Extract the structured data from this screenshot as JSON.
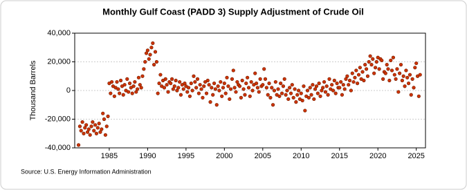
{
  "chart_data": {
    "type": "scatter",
    "title": "Monthly Gulf Coast (PADD 3) Supply Adjustment of Crude Oil",
    "y_label": "Thousand Barrels",
    "source": "Source: U.S. Energy Information Administration",
    "color": "#cc3300",
    "grid": true,
    "xlim": [
      1980.5,
      2026.2
    ],
    "xticks": [
      1985,
      1990,
      1995,
      2000,
      2005,
      2010,
      2015,
      2020,
      2025
    ],
    "ylim": [
      -40000,
      40000
    ],
    "yticks": [
      {
        "value": -40000,
        "label": "-40,000"
      },
      {
        "value": -20000,
        "label": "-20,000"
      },
      0,
      {
        "value": 20000,
        "label": "20,000"
      },
      {
        "value": 40000,
        "label": "40,000"
      }
    ],
    "x": [
      1981,
      1981.17,
      1981.33,
      1981.5,
      1981.67,
      1981.83,
      1982,
      1982.17,
      1982.33,
      1982.5,
      1982.67,
      1982.83,
      1983,
      1983.17,
      1983.33,
      1983.5,
      1983.67,
      1983.83,
      1984,
      1984.17,
      1984.33,
      1984.5,
      1984.67,
      1984.83,
      1985,
      1985.17,
      1985.33,
      1985.5,
      1985.67,
      1985.83,
      1986,
      1986.17,
      1986.33,
      1986.5,
      1986.67,
      1986.83,
      1987,
      1987.17,
      1987.33,
      1987.5,
      1987.67,
      1987.83,
      1988,
      1988.17,
      1988.33,
      1988.5,
      1988.67,
      1988.83,
      1989,
      1989.17,
      1989.33,
      1989.5,
      1989.67,
      1989.83,
      1990,
      1990.17,
      1990.33,
      1990.5,
      1990.67,
      1990.83,
      1991,
      1991.17,
      1991.33,
      1991.5,
      1991.67,
      1991.83,
      1992,
      1992.17,
      1992.33,
      1992.5,
      1992.67,
      1992.83,
      1993,
      1993.17,
      1993.33,
      1993.5,
      1993.67,
      1993.83,
      1994,
      1994.17,
      1994.33,
      1994.5,
      1994.67,
      1994.83,
      1995,
      1995.17,
      1995.33,
      1995.5,
      1995.67,
      1995.83,
      1996,
      1996.17,
      1996.33,
      1996.5,
      1996.67,
      1996.83,
      1997,
      1997.17,
      1997.33,
      1997.5,
      1997.67,
      1997.83,
      1998,
      1998.17,
      1998.33,
      1998.5,
      1998.67,
      1998.83,
      1999,
      1999.17,
      1999.33,
      1999.5,
      1999.67,
      1999.83,
      2000,
      2000.17,
      2000.33,
      2000.5,
      2000.67,
      2000.83,
      2001,
      2001.17,
      2001.33,
      2001.5,
      2001.67,
      2001.83,
      2002,
      2002.17,
      2002.33,
      2002.5,
      2002.67,
      2002.83,
      2003,
      2003.17,
      2003.33,
      2003.5,
      2003.67,
      2003.83,
      2004,
      2004.17,
      2004.33,
      2004.5,
      2004.67,
      2004.83,
      2005,
      2005.17,
      2005.33,
      2005.5,
      2005.67,
      2005.83,
      2006,
      2006.17,
      2006.33,
      2006.5,
      2006.67,
      2006.83,
      2007,
      2007.17,
      2007.33,
      2007.5,
      2007.67,
      2007.83,
      2008,
      2008.17,
      2008.33,
      2008.5,
      2008.67,
      2008.83,
      2009,
      2009.17,
      2009.33,
      2009.5,
      2009.67,
      2009.83,
      2010,
      2010.17,
      2010.33,
      2010.5,
      2010.67,
      2010.83,
      2011,
      2011.17,
      2011.33,
      2011.5,
      2011.67,
      2011.83,
      2012,
      2012.17,
      2012.33,
      2012.5,
      2012.67,
      2012.83,
      2013,
      2013.17,
      2013.33,
      2013.5,
      2013.67,
      2013.83,
      2014,
      2014.17,
      2014.33,
      2014.5,
      2014.67,
      2014.83,
      2015,
      2015.17,
      2015.33,
      2015.5,
      2015.67,
      2015.83,
      2016,
      2016.17,
      2016.33,
      2016.5,
      2016.67,
      2016.83,
      2017,
      2017.17,
      2017.33,
      2017.5,
      2017.67,
      2017.83,
      2018,
      2018.17,
      2018.33,
      2018.5,
      2018.67,
      2018.83,
      2019,
      2019.17,
      2019.33,
      2019.5,
      2019.67,
      2019.83,
      2020,
      2020.17,
      2020.33,
      2020.5,
      2020.67,
      2020.83,
      2021,
      2021.17,
      2021.33,
      2021.5,
      2021.67,
      2021.83,
      2022,
      2022.17,
      2022.33,
      2022.5,
      2022.67,
      2022.83,
      2023,
      2023.17,
      2023.33,
      2023.5,
      2023.67,
      2023.83,
      2024,
      2024.17,
      2024.33,
      2024.5,
      2024.67,
      2024.83,
      2025,
      2025.17,
      2025.33,
      2025.5
    ],
    "values": [
      -38000,
      -25000,
      -28000,
      -22000,
      -30000,
      -26000,
      -24000,
      -29000,
      -27000,
      -31000,
      -25000,
      -22000,
      -28000,
      -24000,
      -30000,
      -26000,
      -23000,
      -29000,
      -27000,
      -16000,
      -20000,
      -31000,
      -25000,
      -18000,
      5000,
      -2000,
      6000,
      3000,
      -4000,
      2000,
      6000,
      1000,
      -2000,
      7000,
      3000,
      -3000,
      4000,
      0,
      8000,
      -1000,
      5000,
      2000,
      -2000,
      3000,
      6000,
      -1000,
      1000,
      9000,
      4000,
      2000,
      10000,
      15000,
      20000,
      26000,
      28000,
      22000,
      25000,
      30000,
      33000,
      18000,
      27000,
      20000,
      -2000,
      5000,
      11000,
      3000,
      7000,
      2000,
      8000,
      4000,
      -1000,
      6000,
      5000,
      8000,
      1000,
      3000,
      7000,
      0,
      2000,
      6000,
      -3000,
      4000,
      1000,
      5000,
      3000,
      -1000,
      2000,
      -4000,
      5000,
      0,
      10000,
      6000,
      2000,
      8000,
      -2000,
      4000,
      1000,
      -5000,
      3000,
      6000,
      -2000,
      7000,
      4000,
      -8000,
      2000,
      -3000,
      5000,
      1000,
      -10000,
      3000,
      0,
      6000,
      -4000,
      2000,
      5000,
      -2000,
      9000,
      3000,
      -6000,
      1000,
      8000,
      14000,
      2000,
      -1000,
      6000,
      4000,
      3000,
      -5000,
      7000,
      1000,
      -3000,
      5000,
      9000,
      2000,
      -4000,
      6000,
      0,
      4000,
      12000,
      5000,
      2000,
      -1000,
      8000,
      3000,
      4000,
      15000,
      8000,
      2000,
      -3000,
      5000,
      -5000,
      2000,
      -10000,
      0,
      6000,
      -3000,
      1000,
      -4000,
      5000,
      -2000,
      3000,
      8000,
      -3000,
      0,
      -6000,
      2000,
      -2000,
      4000,
      -5000,
      1000,
      -8000,
      -3000,
      0,
      -6000,
      -2000,
      -7000,
      3000,
      -14000,
      -4000,
      0,
      -5000,
      2000,
      -3000,
      4000,
      -6000,
      1000,
      3000,
      -2000,
      5000,
      -4000,
      0,
      2000,
      6000,
      -1000,
      3000,
      -3000,
      8000,
      1000,
      4000,
      0,
      7000,
      -2000,
      5000,
      2000,
      2000,
      6000,
      -3000,
      4000,
      1000,
      8000,
      10000,
      4000,
      7000,
      0,
      12000,
      6000,
      9000,
      14000,
      5000,
      11000,
      16000,
      8000,
      13000,
      7000,
      18000,
      15000,
      10000,
      20000,
      24000,
      18000,
      22000,
      12000,
      16000,
      20000,
      23000,
      15000,
      22000,
      21000,
      8000,
      13000,
      12000,
      18000,
      15000,
      7000,
      21000,
      14000,
      23000,
      11000,
      8000,
      15000,
      -1000,
      12000,
      18000,
      7000,
      10000,
      3000,
      14000,
      9000,
      5000,
      11000,
      -3000,
      8000,
      2000,
      16000,
      19000,
      10000,
      -4000,
      11000
    ]
  }
}
